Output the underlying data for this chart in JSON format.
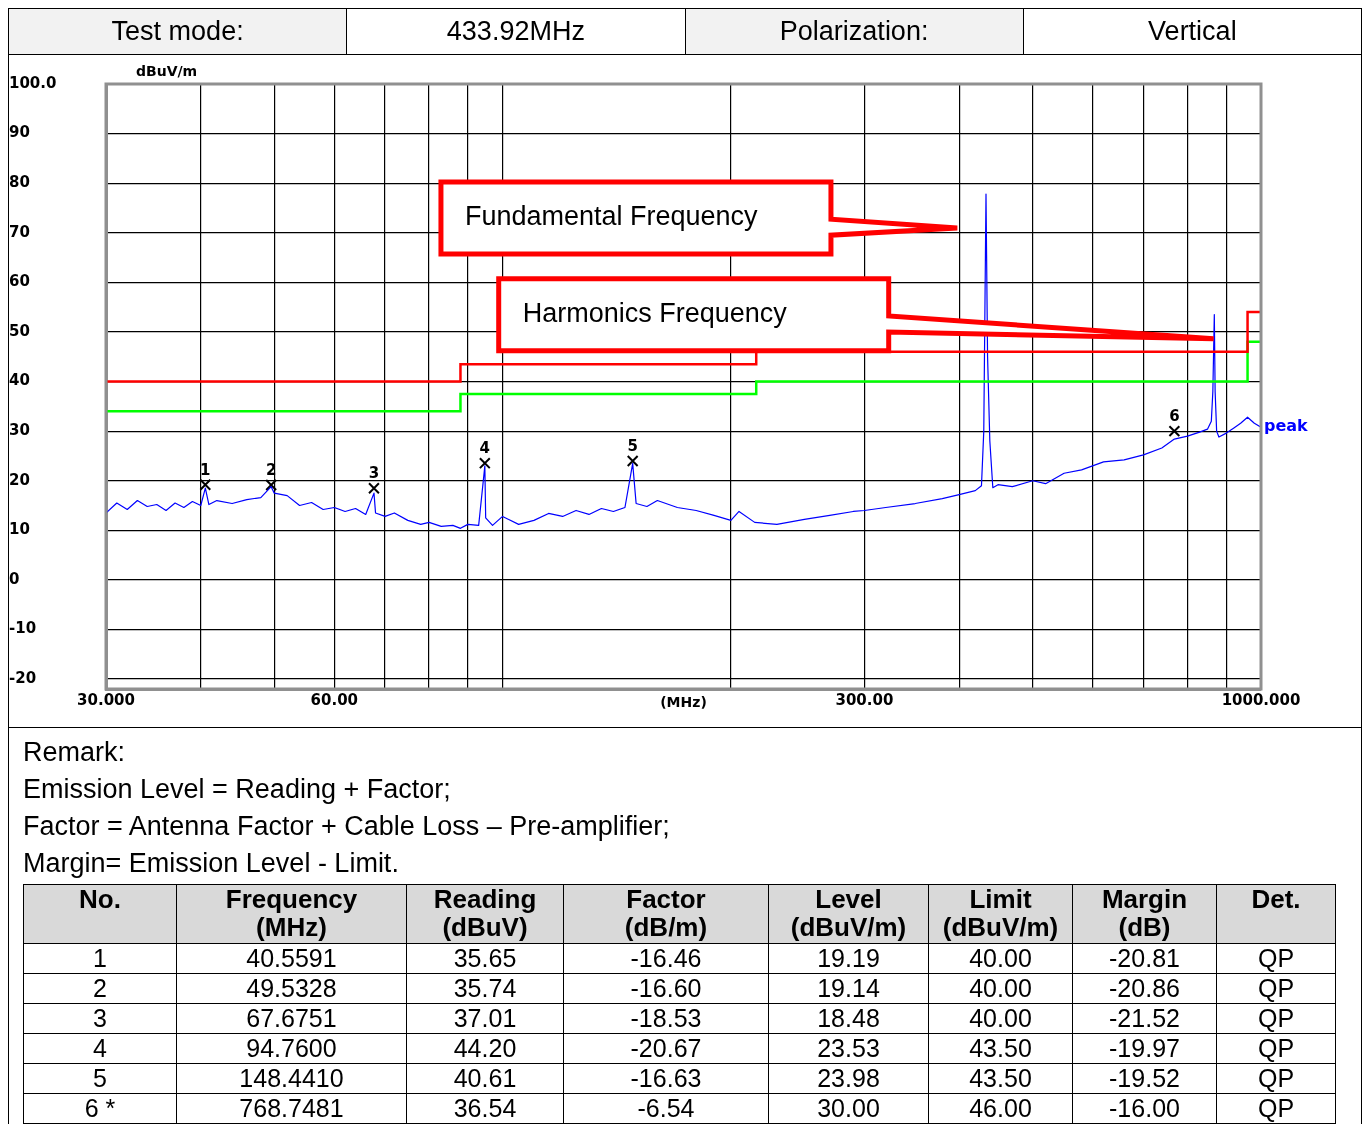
{
  "chart_data": {
    "type": "line",
    "ylabel": "dBuV/m",
    "xlabel": "(MHz)",
    "log": "x",
    "grid": true,
    "legend": false,
    "xlim": [
      30,
      1000
    ],
    "xticks": [
      {
        "value": 30,
        "label": "30.000"
      },
      {
        "value": 40,
        "label": null
      },
      {
        "value": 50,
        "label": null
      },
      {
        "value": 60,
        "label": "60.00"
      },
      {
        "value": 70,
        "label": null
      },
      {
        "value": 80,
        "label": null
      },
      {
        "value": 90,
        "label": null
      },
      {
        "value": 100,
        "label": null
      },
      {
        "value": 200,
        "label": null
      },
      {
        "value": 300,
        "label": "300.00"
      },
      {
        "value": 400,
        "label": null
      },
      {
        "value": 500,
        "label": null
      },
      {
        "value": 600,
        "label": null
      },
      {
        "value": 700,
        "label": null
      },
      {
        "value": 800,
        "label": null
      },
      {
        "value": 900,
        "label": null
      },
      {
        "value": 1000,
        "label": "1000.000"
      }
    ],
    "ylim": [
      -22,
      100
    ],
    "yticks": [
      {
        "value": 100,
        "label": "100.0"
      },
      90,
      80,
      70,
      60,
      50,
      40,
      30,
      20,
      10,
      0,
      -10,
      -20
    ],
    "series": [
      {
        "type": "step",
        "color": "#ff0000",
        "x": [
          30,
          88,
          216,
          960,
          1000
        ],
        "values": [
          40,
          43.5,
          46,
          54,
          54
        ]
      },
      {
        "type": "step",
        "color": "#00ff00",
        "x": [
          30,
          88,
          216,
          960,
          1000
        ],
        "values": [
          34,
          37.5,
          40,
          48,
          48
        ]
      },
      {
        "name": "peak",
        "color": "#0000ff",
        "x": [
          30,
          31,
          32,
          33,
          34,
          35,
          36,
          37,
          38,
          39,
          40,
          40.56,
          41,
          42,
          44,
          46,
          48,
          49.53,
          50,
          52,
          54,
          56,
          58,
          60,
          62,
          64,
          66,
          67.68,
          68,
          70,
          72,
          75,
          78,
          80,
          83,
          86,
          88,
          90,
          93,
          94.76,
          95,
          97,
          100,
          105,
          110,
          115,
          120,
          125,
          130,
          135,
          140,
          145,
          148.44,
          150,
          155,
          160,
          170,
          180,
          190,
          200,
          205,
          215,
          230,
          250,
          270,
          290,
          300,
          320,
          350,
          380,
          400,
          420,
          428,
          431,
          433.92,
          436,
          439,
          443,
          450,
          470,
          500,
          520,
          550,
          580,
          620,
          660,
          700,
          740,
          768.75,
          800,
          830,
          850,
          860,
          864,
          867.84,
          870,
          874,
          880,
          900,
          920,
          940,
          960,
          980,
          1000
        ],
        "values": [
          13.5,
          15.5,
          14.2,
          16,
          14.8,
          15.2,
          14,
          15.5,
          14.6,
          15.8,
          15,
          18.5,
          15.2,
          16,
          15.4,
          16.2,
          16.6,
          18.8,
          17.5,
          17,
          15,
          15.6,
          14.2,
          14.6,
          13.8,
          14.4,
          13.2,
          17.5,
          13.5,
          12.8,
          13.5,
          12,
          11.2,
          11.6,
          10.8,
          11,
          10.4,
          11.2,
          11,
          23,
          12.5,
          11,
          12.8,
          11.2,
          12,
          13.4,
          12.8,
          14,
          13.2,
          14.4,
          13.8,
          14.6,
          23.5,
          15.4,
          14.8,
          16,
          14.6,
          14,
          13,
          12,
          13.8,
          11.6,
          11.2,
          12.2,
          13,
          13.8,
          14,
          14.6,
          15.4,
          16.4,
          17.2,
          18,
          19,
          30,
          77.8,
          45,
          28,
          18.6,
          19.2,
          18.8,
          20,
          19.4,
          21.5,
          22.2,
          23.8,
          24.2,
          25.2,
          26.6,
          28.4,
          29,
          29.8,
          30.4,
          32,
          38,
          53.5,
          38,
          30,
          28.8,
          29.6,
          30.6,
          31.6,
          32.8,
          31.6,
          30.8
        ]
      },
      {
        "type": "scatter",
        "color": "#000000",
        "marker": "cross",
        "x": [
          40.5591,
          49.5328,
          67.6751,
          94.76,
          148.441,
          768.7481
        ],
        "values": [
          19.19,
          19.14,
          18.48,
          23.53,
          23.98,
          30.0
        ]
      }
    ],
    "annotations": [
      "Fundamental Frequency",
      "Harmonics Frequency",
      "Test mode:",
      "433.92MHz",
      "Polarization:",
      "Vertical",
      "Remark:",
      "Emission Level = Reading + Factor;",
      "Factor = Antenna Factor + Cable Loss – Pre-amplifier;",
      "Margin= Emission Level - Limit.",
      "No.",
      "Frequency\n(MHz)",
      "Reading\n(dBuV)",
      "Factor\n(dB/m)",
      "Level\n(dBuV/m)",
      "Limit\n(dBuV/m)",
      "Margin\n(dB)",
      "Det.",
      "1",
      "40.5591",
      "35.65",
      "-16.46",
      "19.19",
      "40.00",
      "-20.81",
      "QP",
      "2",
      "49.5328",
      "35.74",
      "-16.60",
      "19.14",
      "40.00",
      "-20.86",
      "QP",
      "3",
      "67.6751",
      "37.01",
      "-18.53",
      "18.48",
      "40.00",
      "-21.52",
      "QP",
      "4",
      "94.7600",
      "44.20",
      "-20.67",
      "23.53",
      "43.50",
      "-19.97",
      "QP",
      "5",
      "148.4410",
      "40.61",
      "-16.63",
      "23.98",
      "43.50",
      "-19.52",
      "QP",
      "6 *",
      "768.7481",
      "36.54",
      "-6.54",
      "30.00",
      "46.00",
      "-16.00",
      "QP",
      {
        "text": "1",
        "x": 40.5591,
        "y": 19.19
      },
      {
        "text": "2",
        "x": 49.5328,
        "y": 19.14
      },
      {
        "text": "3",
        "x": 67.6751,
        "y": 18.48
      },
      {
        "text": "4",
        "x": 94.76,
        "y": 23.53
      },
      {
        "text": "5",
        "x": 148.441,
        "y": 23.98
      },
      {
        "text": "6",
        "x": 768.7481,
        "y": 30.0
      }
    ]
  }
}
